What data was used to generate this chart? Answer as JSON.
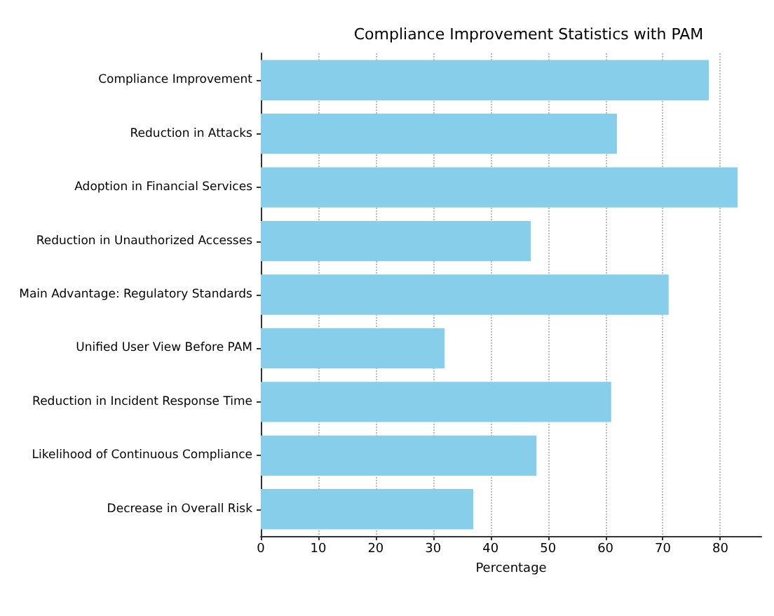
{
  "chart_data": {
    "type": "bar",
    "orientation": "horizontal",
    "title": "Compliance Improvement Statistics with PAM",
    "xlabel": "Percentage",
    "categories": [
      "Compliance Improvement",
      "Reduction in Attacks",
      "Adoption in Financial Services",
      "Reduction in Unauthorized Accesses",
      "Main Advantage: Regulatory Standards",
      "Unified User View Before PAM",
      "Reduction in Incident Response Time",
      "Likelihood of Continuous Compliance",
      "Decrease in Overall Risk"
    ],
    "values": [
      78,
      62,
      83,
      47,
      71,
      32,
      61,
      48,
      37
    ],
    "color": "#87ceeb",
    "xlim": [
      0,
      87.15
    ],
    "xticks": [
      0,
      10,
      20,
      30,
      40,
      50,
      60,
      70,
      80
    ],
    "grid": "x",
    "line_style": "dotted"
  }
}
